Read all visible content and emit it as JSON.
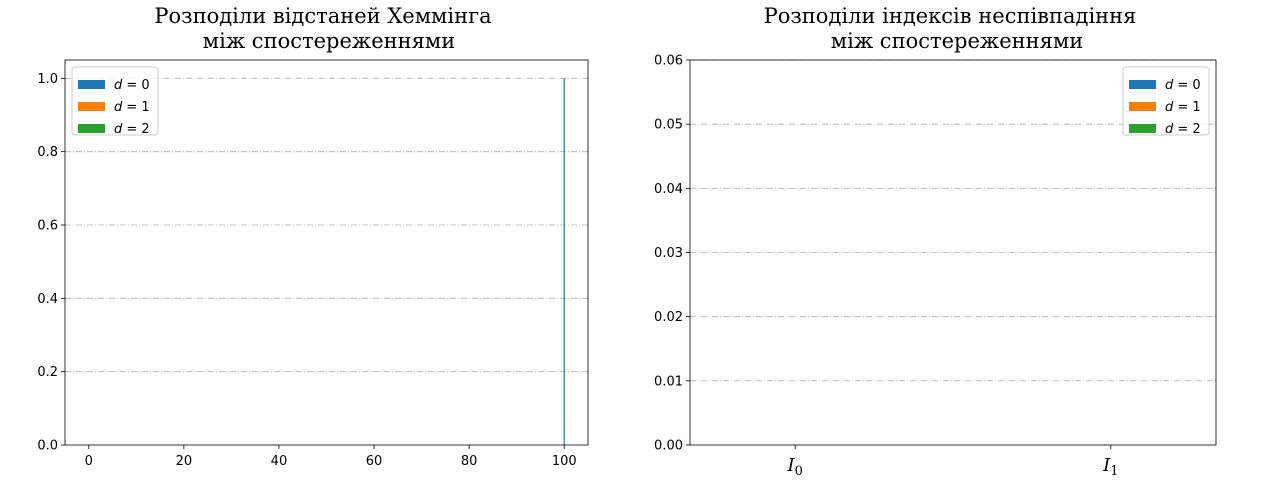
{
  "figure": {
    "charts": [
      {
        "title_line1": "Розподіли відстаней Хеммінга",
        "title_line2": "між спостереженнями"
      },
      {
        "title_line1": "Розподіли індексів неспівпадіння",
        "title_line2": "між спостереженнями"
      }
    ]
  },
  "chart_data": [
    {
      "type": "bar",
      "title": "Розподіли відстаней Хеммінга між спостереженнями",
      "xlabel": "",
      "ylabel": "",
      "xlim": [
        -5,
        105
      ],
      "ylim": [
        0,
        1.05
      ],
      "xticks": [
        0,
        20,
        40,
        60,
        80,
        100
      ],
      "yticks": [
        0.0,
        0.2,
        0.4,
        0.6,
        0.8,
        1.0
      ],
      "grid": "y-dashdot",
      "legend_position": "top-left",
      "series": [
        {
          "name": "d = 0",
          "color": "#1f77b4",
          "x": [
            100
          ],
          "values": [
            1.0
          ]
        },
        {
          "name": "d = 1",
          "color": "#ff7f0e",
          "x": [],
          "values": []
        },
        {
          "name": "d = 2",
          "color": "#2ca02c",
          "x": [],
          "values": []
        }
      ]
    },
    {
      "type": "bar",
      "title": "Розподіли індексів неспівпадіння між спостереженнями",
      "xlabel": "",
      "ylabel": "",
      "categories": [
        "I0",
        "I1"
      ],
      "ylim": [
        0,
        0.06
      ],
      "yticks": [
        0.0,
        0.01,
        0.02,
        0.03,
        0.04,
        0.05,
        0.06
      ],
      "grid": "y-dashdot",
      "legend_position": "top-right",
      "series": [
        {
          "name": "d = 0",
          "color": "#1f77b4",
          "values": [
            0,
            0
          ]
        },
        {
          "name": "d = 1",
          "color": "#ff7f0e",
          "values": [
            0,
            0
          ]
        },
        {
          "name": "d = 2",
          "color": "#2ca02c",
          "values": [
            0,
            0
          ]
        }
      ]
    }
  ]
}
